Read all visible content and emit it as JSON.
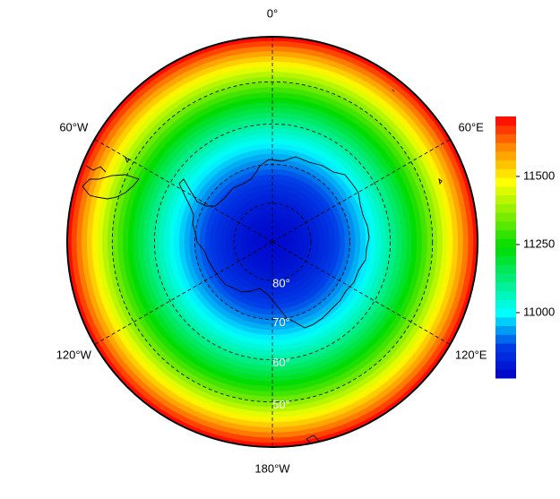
{
  "map": {
    "meridians": [
      {
        "value": 0,
        "label": "0°"
      },
      {
        "value": 60,
        "label": "60°E"
      },
      {
        "value": 120,
        "label": "120°E"
      },
      {
        "value": 180,
        "label": "180°W"
      },
      {
        "value": -120,
        "label": "120°W"
      },
      {
        "value": -60,
        "label": "60°W"
      }
    ],
    "parallels": [
      {
        "value": 80,
        "label": "80°"
      },
      {
        "value": 70,
        "label": "70°"
      },
      {
        "value": 60,
        "label": "60°"
      },
      {
        "value": 50,
        "label": "50°"
      }
    ],
    "colorbar": {
      "lim": [
        10760,
        11720
      ],
      "ticks": [
        11000,
        11250,
        11500
      ]
    }
  }
}
